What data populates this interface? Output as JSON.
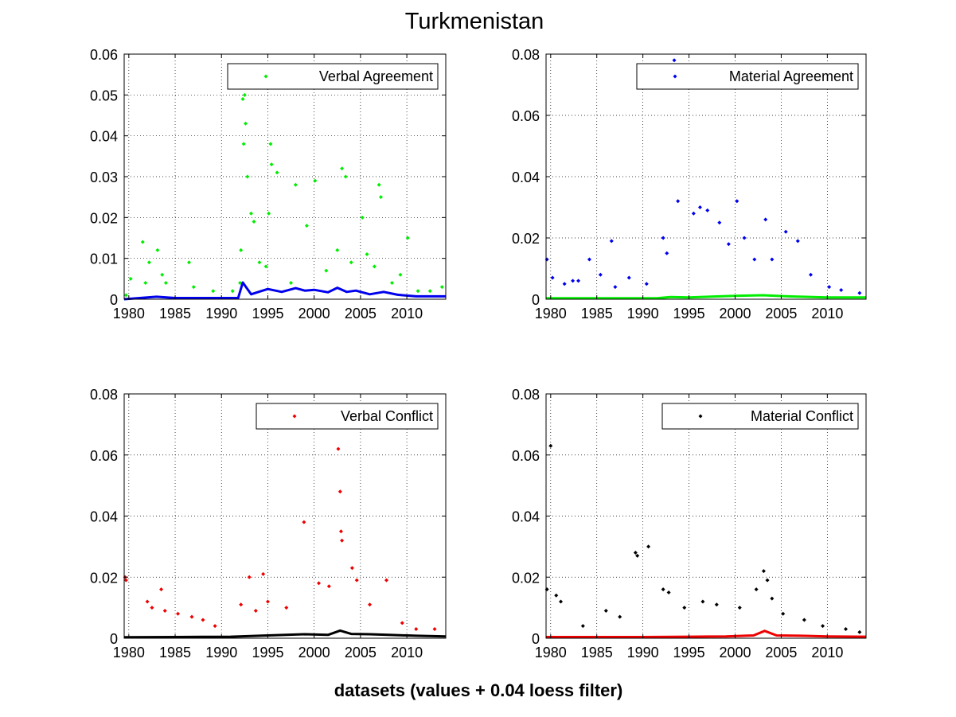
{
  "figure": {
    "title": "Turkmenistan",
    "xlabel": "datasets (values + 0.04 loess filter)"
  },
  "chart_data": [
    {
      "type": "scatter",
      "legend": "Verbal Agreement",
      "legend_position": "top-right",
      "grid": true,
      "xlim": [
        1979.5,
        2014.2
      ],
      "ylim": [
        0,
        0.06
      ],
      "xticks": [
        1980,
        1985,
        1990,
        1995,
        2000,
        2005,
        2010
      ],
      "yticks": [
        0,
        0.01,
        0.02,
        0.03,
        0.04,
        0.05,
        0.06
      ],
      "ytick_labels": [
        "0",
        "0.01",
        "0.02",
        "0.03",
        "0.04",
        "0.05",
        "0.06"
      ],
      "series": [
        {
          "name": "Verbal Agreement",
          "color": "#00ee00",
          "style": "points",
          "x": [
            1979.7,
            1980.2,
            1981.5,
            1981.8,
            1982.2,
            1983.1,
            1983.6,
            1984.0,
            1986.5,
            1987.0,
            1989.1,
            1991.2,
            1992.0,
            1992.1,
            1992.3,
            1992.4,
            1992.5,
            1992.6,
            1992.8,
            1993.2,
            1993.5,
            1994.1,
            1994.8,
            1995.1,
            1995.3,
            1995.4,
            1996.0,
            1997.5,
            1998.0,
            1999.2,
            2000.1,
            2001.3,
            2002.5,
            2003.0,
            2003.4,
            2004.0,
            2005.2,
            2005.7,
            2006.5,
            2007.0,
            2007.2,
            2008.4,
            2009.3,
            2010.1,
            2011.2,
            2012.5,
            2013.8
          ],
          "y": [
            0.001,
            0.005,
            0.014,
            0.004,
            0.009,
            0.012,
            0.006,
            0.004,
            0.009,
            0.003,
            0.002,
            0.002,
            0.004,
            0.012,
            0.049,
            0.038,
            0.05,
            0.043,
            0.03,
            0.021,
            0.019,
            0.009,
            0.008,
            0.021,
            0.038,
            0.033,
            0.031,
            0.004,
            0.028,
            0.018,
            0.029,
            0.007,
            0.012,
            0.032,
            0.03,
            0.009,
            0.02,
            0.011,
            0.008,
            0.028,
            0.025,
            0.004,
            0.006,
            0.015,
            0.002,
            0.002,
            0.003
          ]
        },
        {
          "name": "loess",
          "color": "#0000ee",
          "style": "line",
          "x": [
            1979.5,
            1983.0,
            1985.0,
            1991.8,
            1992.3,
            1992.7,
            1993.2,
            1994.0,
            1995.0,
            1996.5,
            1998.0,
            1999.0,
            2000.0,
            2001.5,
            2002.5,
            2003.5,
            2004.5,
            2006.0,
            2007.5,
            2009.0,
            2011.0,
            2014.2
          ],
          "y": [
            0.0,
            0.0006,
            0.0003,
            0.0003,
            0.0041,
            0.0028,
            0.0012,
            0.0018,
            0.0025,
            0.0018,
            0.0027,
            0.0021,
            0.0023,
            0.0017,
            0.0028,
            0.0018,
            0.0021,
            0.0012,
            0.0018,
            0.0011,
            0.0007,
            0.0007
          ]
        }
      ]
    },
    {
      "type": "scatter",
      "legend": "Material Agreement",
      "legend_position": "top-right",
      "grid": true,
      "xlim": [
        1979.5,
        2014.2
      ],
      "ylim": [
        0,
        0.08
      ],
      "xticks": [
        1980,
        1985,
        1990,
        1995,
        2000,
        2005,
        2010
      ],
      "yticks": [
        0,
        0.02,
        0.04,
        0.06,
        0.08
      ],
      "ytick_labels": [
        "0",
        "0.02",
        "0.04",
        "0.06",
        "0.08"
      ],
      "series": [
        {
          "name": "Material Agreement",
          "color": "#0000ee",
          "style": "points",
          "x": [
            1979.6,
            1980.2,
            1981.5,
            1982.4,
            1983.0,
            1984.2,
            1985.4,
            1986.6,
            1987.0,
            1988.5,
            1990.4,
            1992.2,
            1992.6,
            1993.4,
            1993.8,
            1995.5,
            1996.2,
            1997.0,
            1998.3,
            1999.3,
            2000.2,
            2001.0,
            2002.1,
            2003.3,
            2004.0,
            2005.5,
            2006.8,
            2008.2,
            2010.2,
            2011.5,
            2013.5
          ],
          "y": [
            0.013,
            0.007,
            0.005,
            0.006,
            0.006,
            0.013,
            0.008,
            0.019,
            0.004,
            0.007,
            0.005,
            0.02,
            0.015,
            0.078,
            0.032,
            0.028,
            0.03,
            0.029,
            0.025,
            0.018,
            0.032,
            0.02,
            0.013,
            0.026,
            0.013,
            0.022,
            0.019,
            0.008,
            0.004,
            0.003,
            0.002
          ]
        },
        {
          "name": "loess",
          "color": "#00ee00",
          "style": "line",
          "x": [
            1979.5,
            1991.5,
            1993.0,
            1995.0,
            1998.0,
            2000.0,
            2003.0,
            2006.0,
            2010.0,
            2014.2
          ],
          "y": [
            0.0003,
            0.0003,
            0.0007,
            0.0006,
            0.0009,
            0.0011,
            0.0013,
            0.0009,
            0.0006,
            0.0006
          ]
        }
      ]
    },
    {
      "type": "scatter",
      "legend": "Verbal Conflict",
      "legend_position": "top-right",
      "grid": true,
      "xlim": [
        1979.5,
        2014.2
      ],
      "ylim": [
        0,
        0.08
      ],
      "xticks": [
        1980,
        1985,
        1990,
        1995,
        2000,
        2005,
        2010
      ],
      "yticks": [
        0,
        0.02,
        0.04,
        0.06,
        0.08
      ],
      "ytick_labels": [
        "0",
        "0.02",
        "0.04",
        "0.06",
        "0.08"
      ],
      "series": [
        {
          "name": "Verbal Conflict",
          "color": "#ee0000",
          "style": "points",
          "x": [
            1979.6,
            1979.7,
            1982.0,
            1982.5,
            1983.5,
            1983.9,
            1985.3,
            1986.8,
            1988.0,
            1989.3,
            1992.1,
            1993.0,
            1993.7,
            1994.5,
            1995.0,
            1997.0,
            1998.9,
            2000.5,
            2001.6,
            2002.6,
            2002.8,
            2002.9,
            2003.0,
            2004.1,
            2004.6,
            2006.0,
            2007.8,
            2009.5,
            2011.0,
            2013.0
          ],
          "y": [
            0.02,
            0.019,
            0.012,
            0.01,
            0.016,
            0.009,
            0.008,
            0.007,
            0.006,
            0.004,
            0.011,
            0.02,
            0.009,
            0.021,
            0.012,
            0.01,
            0.038,
            0.018,
            0.017,
            0.062,
            0.048,
            0.035,
            0.032,
            0.023,
            0.019,
            0.011,
            0.019,
            0.005,
            0.003,
            0.003
          ]
        },
        {
          "name": "loess",
          "color": "#000000",
          "style": "line",
          "x": [
            1979.5,
            1985.0,
            1991.0,
            1995.0,
            1999.0,
            2001.5,
            2002.8,
            2004.0,
            2006.0,
            2008.0,
            2011.0,
            2014.2
          ],
          "y": [
            0.0003,
            0.0004,
            0.0005,
            0.0009,
            0.0013,
            0.0011,
            0.0025,
            0.0014,
            0.0013,
            0.0011,
            0.0008,
            0.0006
          ]
        }
      ]
    },
    {
      "type": "scatter",
      "legend": "Material Conflict",
      "legend_position": "top-right",
      "grid": true,
      "xlim": [
        1979.5,
        2014.2
      ],
      "ylim": [
        0,
        0.08
      ],
      "xticks": [
        1980,
        1985,
        1990,
        1995,
        2000,
        2005,
        2010
      ],
      "yticks": [
        0,
        0.02,
        0.04,
        0.06,
        0.08
      ],
      "ytick_labels": [
        "0",
        "0.02",
        "0.04",
        "0.06",
        "0.08"
      ],
      "series": [
        {
          "name": "Material Conflict",
          "color": "#000000",
          "style": "points",
          "x": [
            1979.6,
            1980.0,
            1980.6,
            1981.1,
            1983.5,
            1986.0,
            1987.5,
            1989.2,
            1989.4,
            1990.6,
            1992.2,
            1992.8,
            1994.5,
            1996.5,
            1998.0,
            2000.5,
            2002.3,
            2003.1,
            2003.5,
            2004.0,
            2005.2,
            2007.5,
            2009.5,
            2012.0,
            2013.5
          ],
          "y": [
            0.016,
            0.063,
            0.014,
            0.012,
            0.004,
            0.009,
            0.007,
            0.028,
            0.027,
            0.03,
            0.016,
            0.015,
            0.01,
            0.012,
            0.011,
            0.01,
            0.016,
            0.022,
            0.019,
            0.013,
            0.008,
            0.006,
            0.004,
            0.003,
            0.002
          ]
        },
        {
          "name": "loess",
          "color": "#ee0000",
          "style": "line",
          "x": [
            1979.5,
            1990.0,
            1995.0,
            1999.0,
            2002.0,
            2003.2,
            2004.5,
            2007.0,
            2010.0,
            2014.2
          ],
          "y": [
            0.0004,
            0.0004,
            0.0005,
            0.0006,
            0.0009,
            0.0024,
            0.0009,
            0.0008,
            0.0006,
            0.0005
          ]
        }
      ]
    }
  ]
}
